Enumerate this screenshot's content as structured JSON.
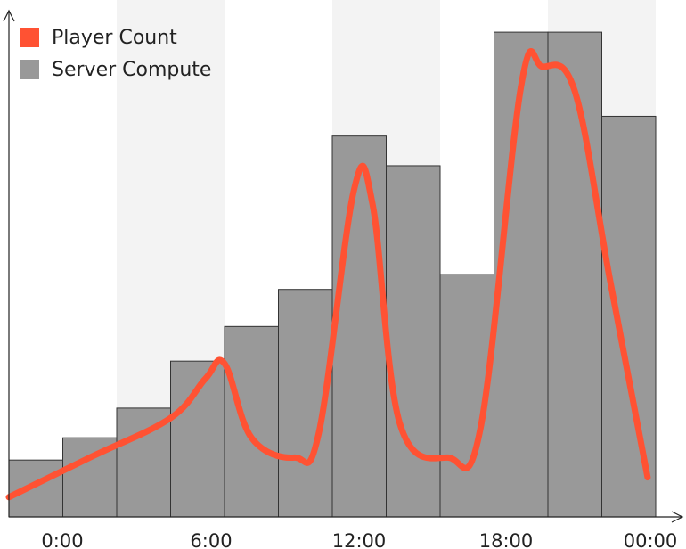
{
  "chart_data": {
    "type": "bar",
    "legend_placement": "top-left",
    "grid": false,
    "x_tick_labels": [
      "0:00",
      "6:00",
      "12:00",
      "18:00",
      "00:00"
    ],
    "ylim": [
      0,
      100
    ],
    "series": [
      {
        "name": "Server Compute",
        "type": "bar",
        "color": "#999999",
        "bins": [
          "0:00-2:00",
          "2:00-4:00",
          "4:00-6:00",
          "6:00-8:00",
          "8:00-10:00",
          "10:00-12:00",
          "12:00-14:00",
          "14:00-16:00",
          "16:00-18:00",
          "18:00-20:00",
          "20:00-22:00",
          "22:00-00:00"
        ],
        "values": [
          11.5,
          16,
          22,
          31.5,
          38.5,
          46,
          77,
          71,
          49,
          98,
          98,
          81
        ]
      },
      {
        "name": "Player Count",
        "type": "line",
        "color": "#FF5233",
        "hours": [
          0,
          3,
          6,
          7.3,
          8,
          9,
          10.6,
          11.5,
          12.8,
          13.5,
          14.5,
          16.3,
          17.5,
          19.0,
          19.8,
          21.0,
          22.3,
          23.7
        ],
        "values": [
          4,
          12,
          20,
          28,
          31,
          16,
          12,
          17,
          66,
          63,
          19,
          12,
          18,
          87,
          91,
          86,
          48,
          8
        ]
      }
    ],
    "legend": [
      "Player Count",
      "Server Compute"
    ]
  }
}
